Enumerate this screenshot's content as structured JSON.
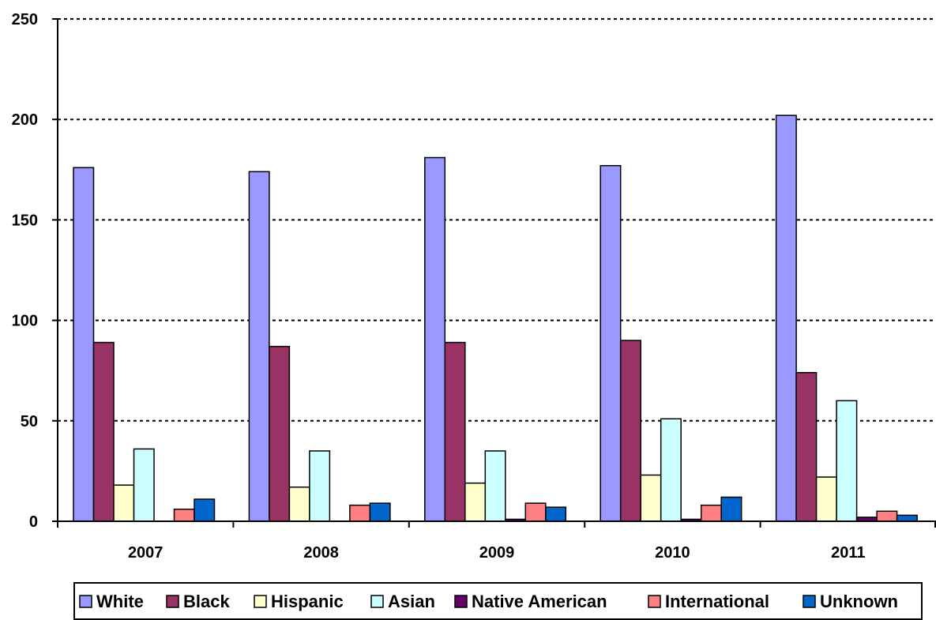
{
  "chart_data": {
    "type": "bar",
    "title": "",
    "xlabel": "",
    "ylabel": "",
    "ylim": [
      0,
      250
    ],
    "yticks": [
      0,
      50,
      100,
      150,
      200,
      250
    ],
    "grid": "horizontal dotted",
    "legend_position": "bottom",
    "categories": [
      "2007",
      "2008",
      "2009",
      "2010",
      "2011"
    ],
    "series": [
      {
        "name": "White",
        "color": "#9999ff",
        "values": [
          176,
          174,
          181,
          177,
          202
        ]
      },
      {
        "name": "Black",
        "color": "#993366",
        "values": [
          89,
          87,
          89,
          90,
          74
        ]
      },
      {
        "name": "Hispanic",
        "color": "#ffffcc",
        "values": [
          18,
          17,
          19,
          23,
          22
        ]
      },
      {
        "name": "Asian",
        "color": "#ccffff",
        "values": [
          36,
          35,
          35,
          51,
          60
        ]
      },
      {
        "name": "Native American",
        "color": "#660066",
        "values": [
          0,
          0,
          1,
          1,
          2
        ]
      },
      {
        "name": "International",
        "color": "#ff8080",
        "values": [
          6,
          8,
          9,
          8,
          5
        ]
      },
      {
        "name": "Unknown",
        "color": "#0066cc",
        "values": [
          11,
          9,
          7,
          12,
          3
        ]
      }
    ]
  }
}
